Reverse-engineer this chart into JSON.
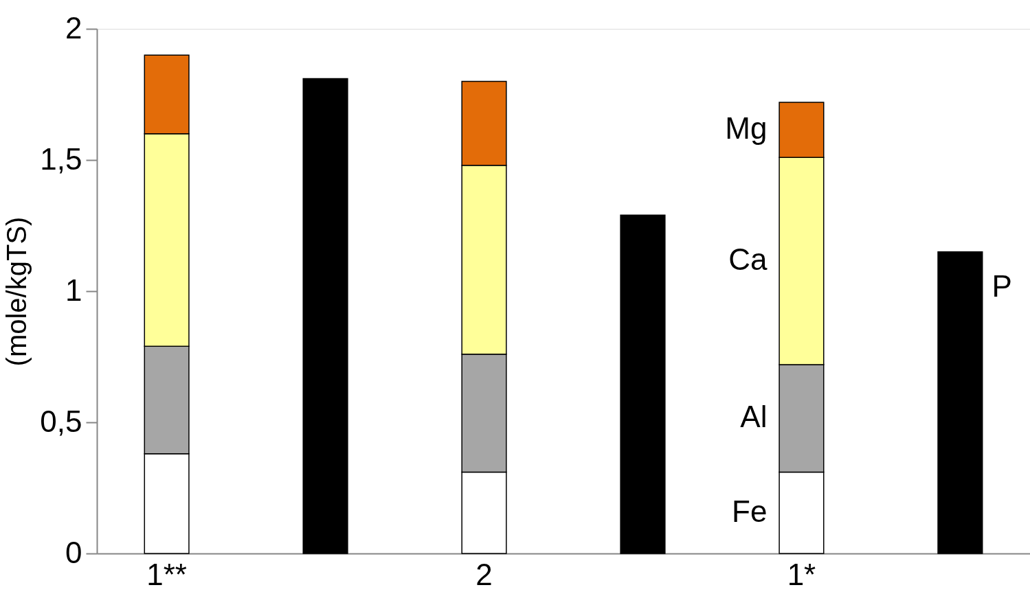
{
  "chart_data": {
    "type": "bar",
    "stacked": true,
    "ylabel": "(mole/kgTS)",
    "categories": [
      "1**",
      null,
      "2",
      null,
      "1*",
      null
    ],
    "series": [
      {
        "name": "Fe",
        "color": "#ffffff",
        "values": [
          0.38,
          null,
          0.31,
          null,
          0.31,
          null
        ]
      },
      {
        "name": "Al",
        "color": "#a6a6a6",
        "values": [
          0.41,
          null,
          0.45,
          null,
          0.41,
          null
        ]
      },
      {
        "name": "Ca",
        "color": "#ffff99",
        "values": [
          0.81,
          null,
          0.72,
          null,
          0.79,
          null
        ]
      },
      {
        "name": "Mg",
        "color": "#e36c09",
        "values": [
          0.3,
          null,
          0.32,
          null,
          0.21,
          null
        ]
      },
      {
        "name": "P",
        "color": "#000000",
        "values": [
          null,
          1.81,
          null,
          1.29,
          null,
          1.15
        ]
      }
    ],
    "ylim": [
      0,
      2
    ],
    "yticks": [
      0,
      {
        "value": 0.5,
        "label": "0,5"
      },
      1,
      {
        "value": 1.5,
        "label": "1,5"
      },
      2
    ],
    "grid": false
  }
}
